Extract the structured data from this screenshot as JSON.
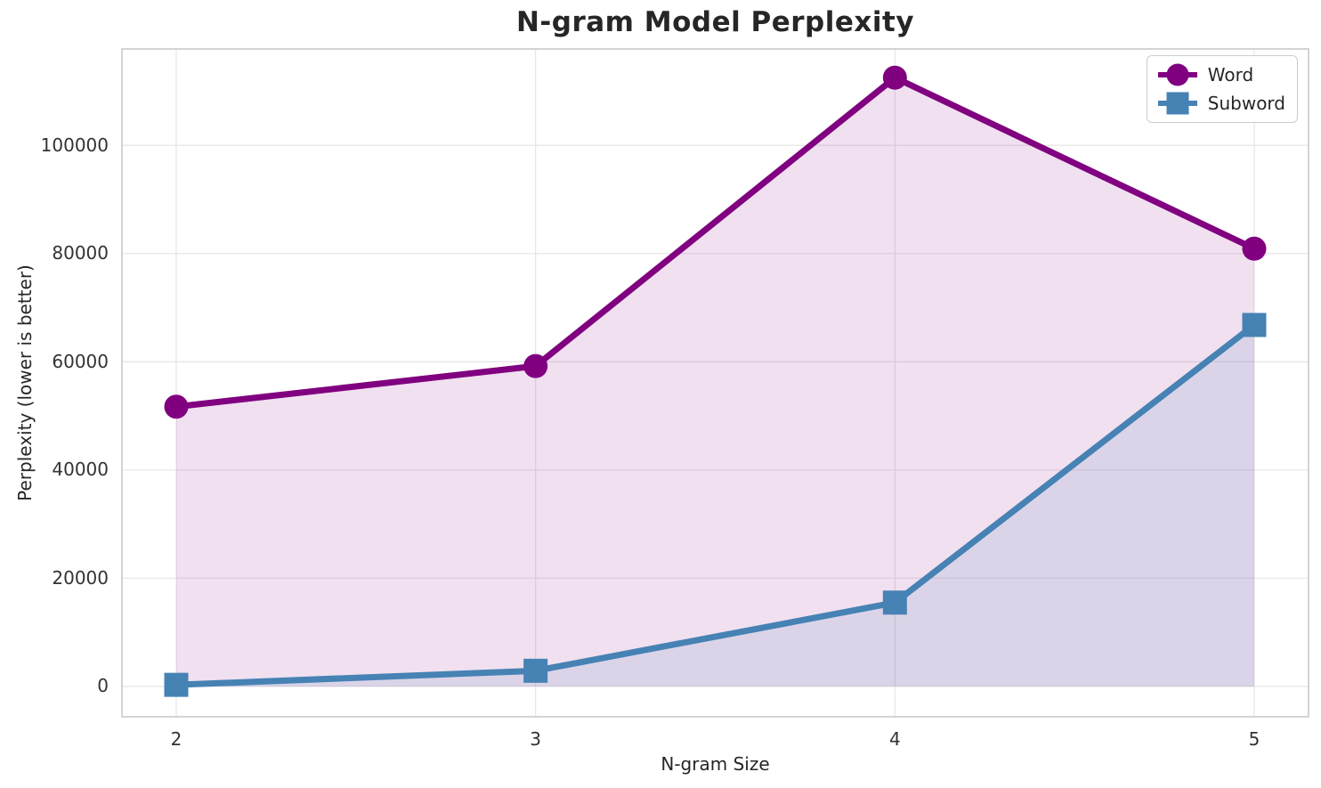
{
  "chart_data": {
    "type": "line",
    "title": "N-gram Model Perplexity",
    "xlabel": "N-gram Size",
    "ylabel": "Perplexity (lower is better)",
    "x": [
      2,
      3,
      4,
      5
    ],
    "xtick_labels": [
      "2",
      "3",
      "4",
      "5"
    ],
    "yticks": [
      0,
      20000,
      40000,
      60000,
      80000,
      100000
    ],
    "ylim": [
      -5600,
      117800
    ],
    "grid": true,
    "grid_color": "#e7e7e7",
    "spine_color": "#cfcfcf",
    "legend_position": "upper right",
    "fill_alpha": 0.12,
    "series": [
      {
        "name": "Word",
        "marker": "circle",
        "color": "#800080",
        "values": [
          51700,
          59200,
          112500,
          80900
        ]
      },
      {
        "name": "Subword",
        "marker": "square",
        "color": "#4682B4",
        "values": [
          300,
          2900,
          15500,
          66800
        ]
      }
    ]
  }
}
